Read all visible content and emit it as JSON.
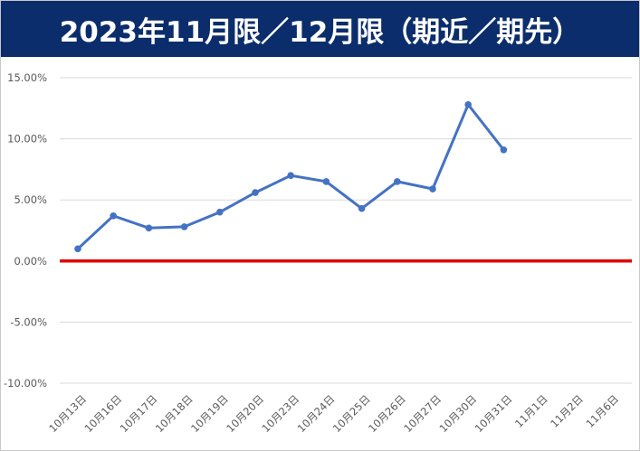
{
  "title": "2023年11月限／12月限（期近／期先）",
  "chart_data": {
    "type": "line",
    "title": "2023年11月限／12月限（期近／期先）",
    "xlabel": "",
    "ylabel": "",
    "categories": [
      "10月13日",
      "10月16日",
      "10月17日",
      "10月18日",
      "10月19日",
      "10月20日",
      "10月23日",
      "10月24日",
      "10月25日",
      "10月26日",
      "10月27日",
      "10月30日",
      "10月31日",
      "11月1日",
      "11月2日",
      "11月6日"
    ],
    "series": [
      {
        "values": [
          0.01,
          0.037,
          0.027,
          0.028,
          0.04,
          0.056,
          0.07,
          0.065,
          0.043,
          0.065,
          0.059,
          0.128,
          0.091,
          null,
          null,
          null
        ],
        "color": "#4472c4"
      }
    ],
    "yticks": [
      "15.00%",
      "10.00%",
      "5.00%",
      "0.00%",
      "-5.00%",
      "-10.00%"
    ],
    "ylim": [
      -0.1,
      0.15
    ],
    "zero_line_color": "#e00000",
    "grid": true,
    "legend": "none"
  }
}
